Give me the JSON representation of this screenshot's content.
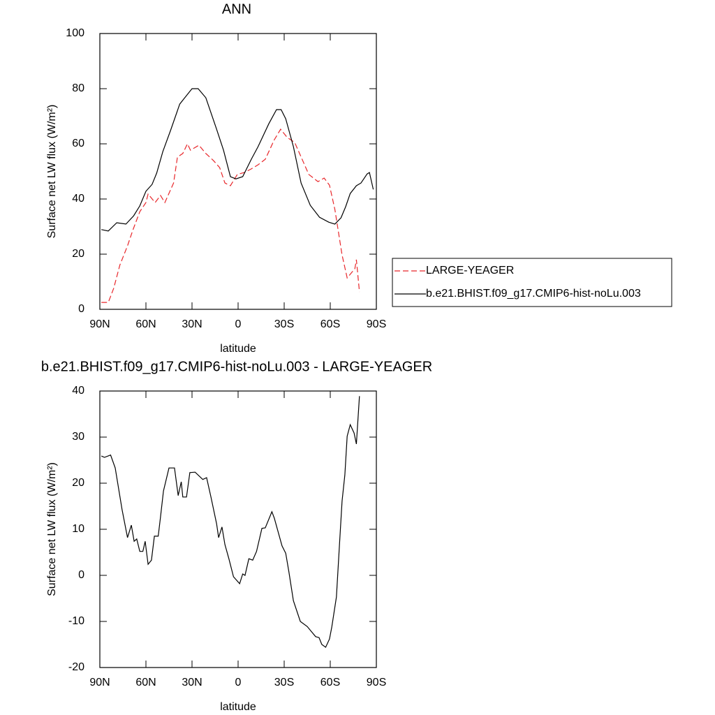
{
  "chart_data": [
    {
      "type": "line",
      "title": "ANN",
      "xlabel": "latitude",
      "ylabel": "Surface net LW flux (W/m²)",
      "xlim": [
        90,
        -90
      ],
      "xticks": [
        {
          "value": 90,
          "label": "90N"
        },
        {
          "value": 60,
          "label": "60N"
        },
        {
          "value": 30,
          "label": "30N"
        },
        0,
        {
          "value": -30,
          "label": "30S"
        },
        {
          "value": -60,
          "label": "60S"
        },
        {
          "value": -90,
          "label": "90S"
        }
      ],
      "ylim": [
        0,
        100
      ],
      "yticks": [
        0,
        20,
        40,
        60,
        80,
        100
      ],
      "legend": "right",
      "series": [
        {
          "name": "LARGE-YEAGER",
          "color": "#e8262a",
          "dash": true,
          "x": [
            89,
            84.5,
            81,
            77,
            72,
            68.6,
            64,
            60,
            58.6,
            54,
            50.5,
            47.7,
            42,
            39.5,
            36,
            33,
            31,
            25.5,
            21,
            16,
            12,
            8.6,
            5,
            0.5,
            -4,
            -8.6,
            -13,
            -17.7,
            -23.6,
            -27.7,
            -32,
            -36.8,
            -40.5,
            -46,
            -52,
            -56,
            -59.5,
            -63,
            -67.7,
            -71,
            -76,
            -77,
            -79
          ],
          "values": [
            2.5,
            2.5,
            7.6,
            16,
            23,
            28.6,
            35.4,
            38.7,
            41.8,
            38.7,
            41.3,
            38.7,
            45.8,
            55.2,
            56.5,
            60,
            57.7,
            59.5,
            56.5,
            53.9,
            51.4,
            45.8,
            44.8,
            48.9,
            49.6,
            50.9,
            52.4,
            54.4,
            61.5,
            65.3,
            62.3,
            60.5,
            55.9,
            48.9,
            46.3,
            47.6,
            45,
            36.2,
            19.7,
            11.4,
            14.7,
            18,
            6.3
          ]
        },
        {
          "name": "b.e21.BHIST.f09_g17.CMIP6-hist-noLu.003",
          "color": "#000000",
          "dash": false,
          "x": [
            89,
            84.5,
            79,
            73,
            68,
            64,
            60,
            56,
            53,
            49,
            44,
            38,
            35,
            30,
            26,
            21,
            14,
            9.5,
            5,
            1.4,
            -3,
            -8.6,
            -13,
            -20,
            -25,
            -28,
            -31,
            -36,
            -41,
            -47,
            -53,
            -59,
            -63,
            -67,
            -70,
            -73,
            -77,
            -80,
            -84,
            -85.5,
            -88
          ],
          "values": [
            28.9,
            28.4,
            31.4,
            30.9,
            33.9,
            37.5,
            42.8,
            45.3,
            49.4,
            57.2,
            64.8,
            74.4,
            76.5,
            80,
            80,
            76.7,
            65.3,
            57.7,
            48.1,
            47.3,
            48.1,
            54.4,
            59,
            67.3,
            72.4,
            72.4,
            69.1,
            59,
            45.8,
            37.7,
            33.4,
            31.6,
            30.9,
            33.2,
            37.2,
            42,
            44.8,
            45.8,
            49.1,
            49.6,
            43.5
          ]
        }
      ]
    },
    {
      "type": "line",
      "title": "b.e21.BHIST.f09_g17.CMIP6-hist-noLu.003 - LARGE-YEAGER",
      "xlabel": "latitude",
      "ylabel": "Surface net LW flux (W/m²)",
      "xlim": [
        90,
        -90
      ],
      "xticks": [
        {
          "value": 90,
          "label": "90N"
        },
        {
          "value": 60,
          "label": "60N"
        },
        {
          "value": 30,
          "label": "30N"
        },
        0,
        {
          "value": -30,
          "label": "30S"
        },
        {
          "value": -60,
          "label": "60S"
        },
        {
          "value": -90,
          "label": "90S"
        }
      ],
      "ylim": [
        -20,
        40
      ],
      "yticks": [
        -20,
        -10,
        0,
        10,
        20,
        30,
        40
      ],
      "series": [
        {
          "color": "#000000",
          "dash": false,
          "x": [
            89,
            87,
            83,
            80,
            75.5,
            72,
            69.5,
            67.7,
            66,
            64,
            62,
            60.5,
            58.6,
            56.4,
            54.5,
            52,
            50.5,
            48.6,
            45,
            41.4,
            39,
            37,
            36,
            33.6,
            31.4,
            28,
            23,
            20.5,
            17.7,
            14,
            12.7,
            10.5,
            8.6,
            6,
            3,
            -1,
            -3,
            -4.5,
            -7,
            -9.5,
            -12,
            -15.5,
            -17.7,
            -22,
            -23.6,
            -28.6,
            -31,
            -33,
            -36,
            -40.5,
            -45,
            -48,
            -50.5,
            -52.7,
            -54.5,
            -57,
            -59.5,
            -61,
            -64,
            -66,
            -67.7,
            -69.5,
            -71,
            -73,
            -75.5,
            -77,
            -79
          ],
          "values": [
            25.9,
            25.6,
            26.1,
            23.3,
            14.2,
            8.2,
            10.9,
            7.4,
            7.9,
            5.2,
            5.2,
            7.4,
            2.4,
            3.3,
            8.5,
            8.5,
            12.7,
            18.3,
            23.3,
            23.3,
            17.3,
            20.3,
            17,
            17,
            22.3,
            22.4,
            20.8,
            21.2,
            17,
            11.2,
            8.2,
            10.5,
            6.7,
            3.6,
            -0.3,
            -1.8,
            0.3,
            0,
            3.6,
            3.3,
            5.2,
            10.2,
            10.3,
            13.8,
            12.4,
            6.4,
            4.8,
            0.9,
            -5.5,
            -10,
            -11.1,
            -12.3,
            -13.3,
            -13.5,
            -15,
            -15.6,
            -13.8,
            -11.2,
            -4.7,
            6.7,
            16.1,
            21.8,
            30.2,
            32.7,
            30.9,
            28.5,
            38.9
          ]
        }
      ]
    }
  ]
}
